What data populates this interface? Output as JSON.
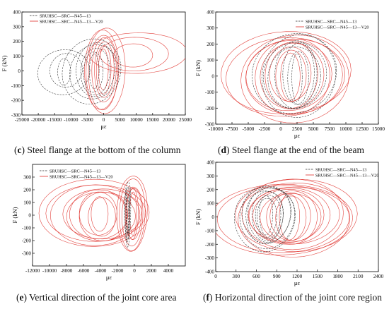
{
  "colors": {
    "series_a": "#2b2b2b",
    "series_b": "#e0302a",
    "axis": "#000000"
  },
  "chart_data": [
    {
      "id": "c",
      "type": "line",
      "caption_letter": "c",
      "caption_text": " Steel flange at the bottom of the column",
      "xlabel": "με",
      "ylabel": "F (kN)",
      "xlim": [
        -25000,
        25000
      ],
      "ylim": [
        -300,
        400
      ],
      "x_ticks": [
        -25000,
        -20000,
        -15000,
        -10000,
        -5000,
        0,
        5000,
        10000,
        15000,
        20000,
        25000
      ],
      "x_tick_labels": [
        "-25000",
        "-20000",
        "-15000",
        "-10000",
        "-5000",
        "0",
        "5000",
        "10000",
        "15000",
        "20000",
        "25000"
      ],
      "y_ticks": [
        -300,
        -200,
        -100,
        0,
        100,
        200,
        300,
        400
      ],
      "y_tick_labels": [
        "-300",
        "-200",
        "-100",
        "0",
        "100",
        "200",
        "300",
        "400"
      ],
      "legend_position": "top-left",
      "series": [
        {
          "name": "SRUHSC—SRC—N45—13",
          "style": "dashed",
          "color": "#2b2b2b",
          "x_range": [
            -20000,
            1000
          ]
        },
        {
          "name": "SRUHSC—SRC—N45—13—V20",
          "style": "solid",
          "color": "#e0302a",
          "x_range": [
            -15000,
            24000
          ]
        }
      ]
    },
    {
      "id": "d",
      "type": "line",
      "caption_letter": "d",
      "caption_text": " Steel flange at the end of the beam",
      "xlabel": "με",
      "ylabel": "F (kN)",
      "xlim": [
        -10000,
        15000
      ],
      "ylim": [
        -300,
        400
      ],
      "x_ticks": [
        -10000,
        -7500,
        -5000,
        -2500,
        0,
        2500,
        5000,
        7500,
        10000,
        12500,
        15000
      ],
      "x_tick_labels": [
        "-10000",
        "-7500",
        "-5000",
        "-2500",
        "0",
        "2500",
        "5000",
        "7500",
        "10000",
        "12500",
        "15000"
      ],
      "y_ticks": [
        -300,
        -200,
        -100,
        0,
        100,
        200,
        300,
        400
      ],
      "y_tick_labels": [
        "-300",
        "-200",
        "-100",
        "0",
        "100",
        "200",
        "300",
        "400"
      ],
      "legend_position": "top-right",
      "series": [
        {
          "name": "SRUHSC—SRC—N45—13",
          "style": "dashed",
          "color": "#2b2b2b",
          "x_range": [
            -1000,
            9000
          ]
        },
        {
          "name": "SRUHSC—SRC—N45—13—V20",
          "style": "solid",
          "color": "#e0302a",
          "x_range": [
            -8000,
            12500
          ]
        }
      ]
    },
    {
      "id": "e",
      "type": "line",
      "caption_letter": "e",
      "caption_text": " Vertical direction of the joint core area",
      "xlabel": "με",
      "ylabel": "F (kN)",
      "xlim": [
        -12000,
        6000
      ],
      "ylim": [
        -400,
        400
      ],
      "x_ticks": [
        -12000,
        -10000,
        -8000,
        -6000,
        -4000,
        -2000,
        0,
        2000,
        4000
      ],
      "x_tick_labels": [
        "-12000",
        "-10000",
        "-8000",
        "-6000",
        "-4000",
        "-2000",
        "0",
        "2000",
        "4000"
      ],
      "y_ticks": [
        -300,
        -200,
        -100,
        0,
        100,
        200,
        300
      ],
      "y_tick_labels": [
        "-300",
        "-200",
        "-100",
        "0",
        "100",
        "200",
        "300"
      ],
      "legend_position": "top-left",
      "series": [
        {
          "name": "SRUHSC—SRC—N45—13",
          "style": "dashed",
          "color": "#2b2b2b",
          "x_range": [
            -1200,
            -500
          ]
        },
        {
          "name": "SRUHSC—SRC—N45—13—V20",
          "style": "solid",
          "color": "#e0302a",
          "x_range": [
            -10200,
            4000
          ]
        }
      ]
    },
    {
      "id": "f",
      "type": "line",
      "caption_letter": "f",
      "caption_text": " Horizontal direction of the joint core region",
      "xlabel": "με",
      "ylabel": "F (kN)",
      "xlim": [
        0,
        2400
      ],
      "ylim": [
        -400,
        400
      ],
      "x_ticks": [
        0,
        300,
        600,
        900,
        1200,
        1500,
        1800,
        2100,
        2400
      ],
      "x_tick_labels": [
        "0",
        "300",
        "600",
        "900",
        "1200",
        "1500",
        "1800",
        "2100",
        "2400"
      ],
      "y_ticks": [
        -400,
        -300,
        -200,
        -100,
        0,
        100,
        200,
        300,
        400
      ],
      "y_tick_labels": [
        "-400",
        "-300",
        "-200",
        "-100",
        "0",
        "100",
        "200",
        "300",
        "400"
      ],
      "legend_position": "top-right",
      "series": [
        {
          "name": "SRUHSC—SRC—N45—13",
          "style": "dashed",
          "color": "#2b2b2b",
          "x_range": [
            150,
            1200
          ]
        },
        {
          "name": "SRUHSC—SRC—N45—13—V20",
          "style": "solid",
          "color": "#e0302a",
          "x_range": [
            250,
            2200
          ]
        }
      ]
    }
  ]
}
